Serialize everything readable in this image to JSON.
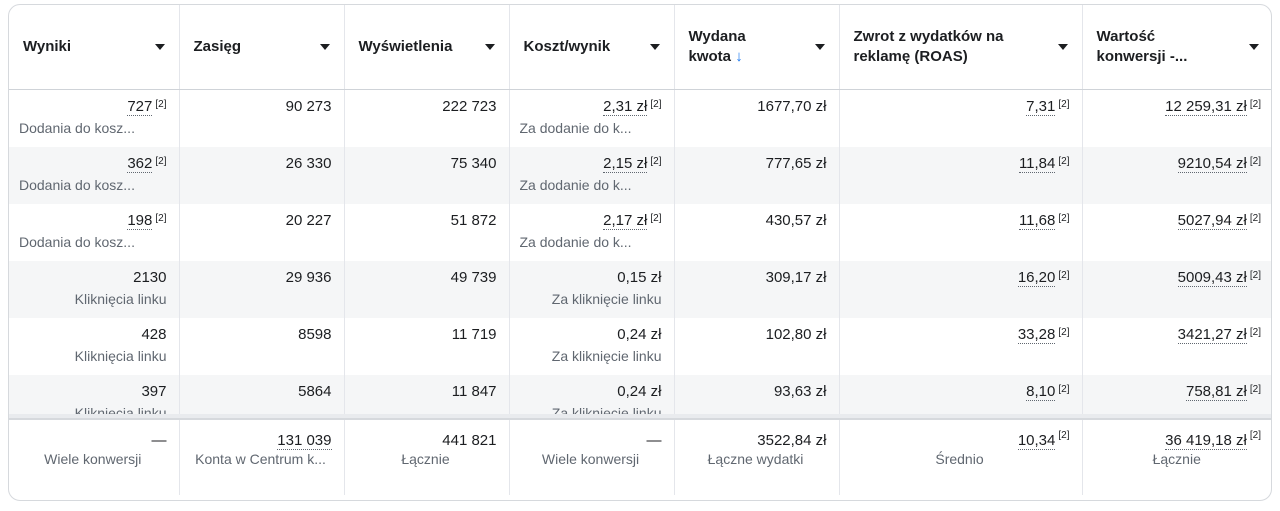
{
  "headers": [
    {
      "label": "Wyniki",
      "sorted": false
    },
    {
      "label": "Zasięg",
      "sorted": false
    },
    {
      "label": "Wyświetlenia",
      "sorted": false
    },
    {
      "label": "Koszt/wynik",
      "sorted": false
    },
    {
      "label": "Wydana kwota",
      "sorted": true,
      "sort_icon": "arrow-down-icon"
    },
    {
      "label": "Zwrot z wydatków na reklamę (ROAS)",
      "sorted": false
    },
    {
      "label": "Wartość konwersji -...",
      "sorted": false
    }
  ],
  "rows": [
    {
      "wyniki": "727",
      "wyniki_sub": "Dodania do kosz...",
      "zasieg": "90 273",
      "wyswietlenia": "222 723",
      "koszt": "2,31 zł",
      "koszt_sub": "Za dodanie do k...",
      "kwota": "1677,70 zł",
      "roas": "7,31",
      "wartosc": "12 259,31 zł"
    },
    {
      "wyniki": "362",
      "wyniki_sub": "Dodania do kosz...",
      "zasieg": "26 330",
      "wyswietlenia": "75 340",
      "koszt": "2,15 zł",
      "koszt_sub": "Za dodanie do k...",
      "kwota": "777,65 zł",
      "roas": "11,84",
      "wartosc": "9210,54 zł"
    },
    {
      "wyniki": "198",
      "wyniki_sub": "Dodania do kosz...",
      "zasieg": "20 227",
      "wyswietlenia": "51 872",
      "koszt": "2,17 zł",
      "koszt_sub": "Za dodanie do k...",
      "kwota": "430,57 zł",
      "roas": "11,68",
      "wartosc": "5027,94 zł"
    },
    {
      "wyniki": "2130",
      "wyniki_sub": "Kliknięcia linku",
      "zasieg": "29 936",
      "wyswietlenia": "49 739",
      "koszt": "0,15 zł",
      "koszt_sub": "Za kliknięcie linku",
      "kwota": "309,17 zł",
      "roas": "16,20",
      "wartosc": "5009,43 zł"
    },
    {
      "wyniki": "428",
      "wyniki_sub": "Kliknięcia linku",
      "zasieg": "8598",
      "wyswietlenia": "11 719",
      "koszt": "0,24 zł",
      "koszt_sub": "Za kliknięcie linku",
      "kwota": "102,80 zł",
      "roas": "33,28",
      "wartosc": "3421,27 zł"
    },
    {
      "wyniki": "397",
      "wyniki_sub": "Kliknięcia linku",
      "zasieg": "5864",
      "wyswietlenia": "11 847",
      "koszt": "0,24 zł",
      "koszt_sub": "Za kliknięcie linku",
      "kwota": "93,63 zł",
      "roas": "8,10",
      "wartosc": "758,81 zł"
    }
  ],
  "note_marker": "[2]",
  "totals": {
    "wyniki": "—",
    "wyniki_sub": "Wiele konwersji",
    "zasieg": "131 039",
    "zasieg_sub": "Konta w Centrum k...",
    "wyswietlenia": "441 821",
    "wyswietlenia_sub": "Łącznie",
    "koszt": "—",
    "koszt_sub": "Wiele konwersji",
    "kwota": "3522,84 zł",
    "kwota_sub": "Łączne wydatki",
    "roas": "10,34",
    "roas_sub": "Średnio",
    "wartosc": "36 419,18 zł",
    "wartosc_sub": "Łącznie"
  },
  "colors": {
    "sort_accent": "#1877f2",
    "zebra": "#f5f6f7",
    "border": "#e4e6eb"
  }
}
